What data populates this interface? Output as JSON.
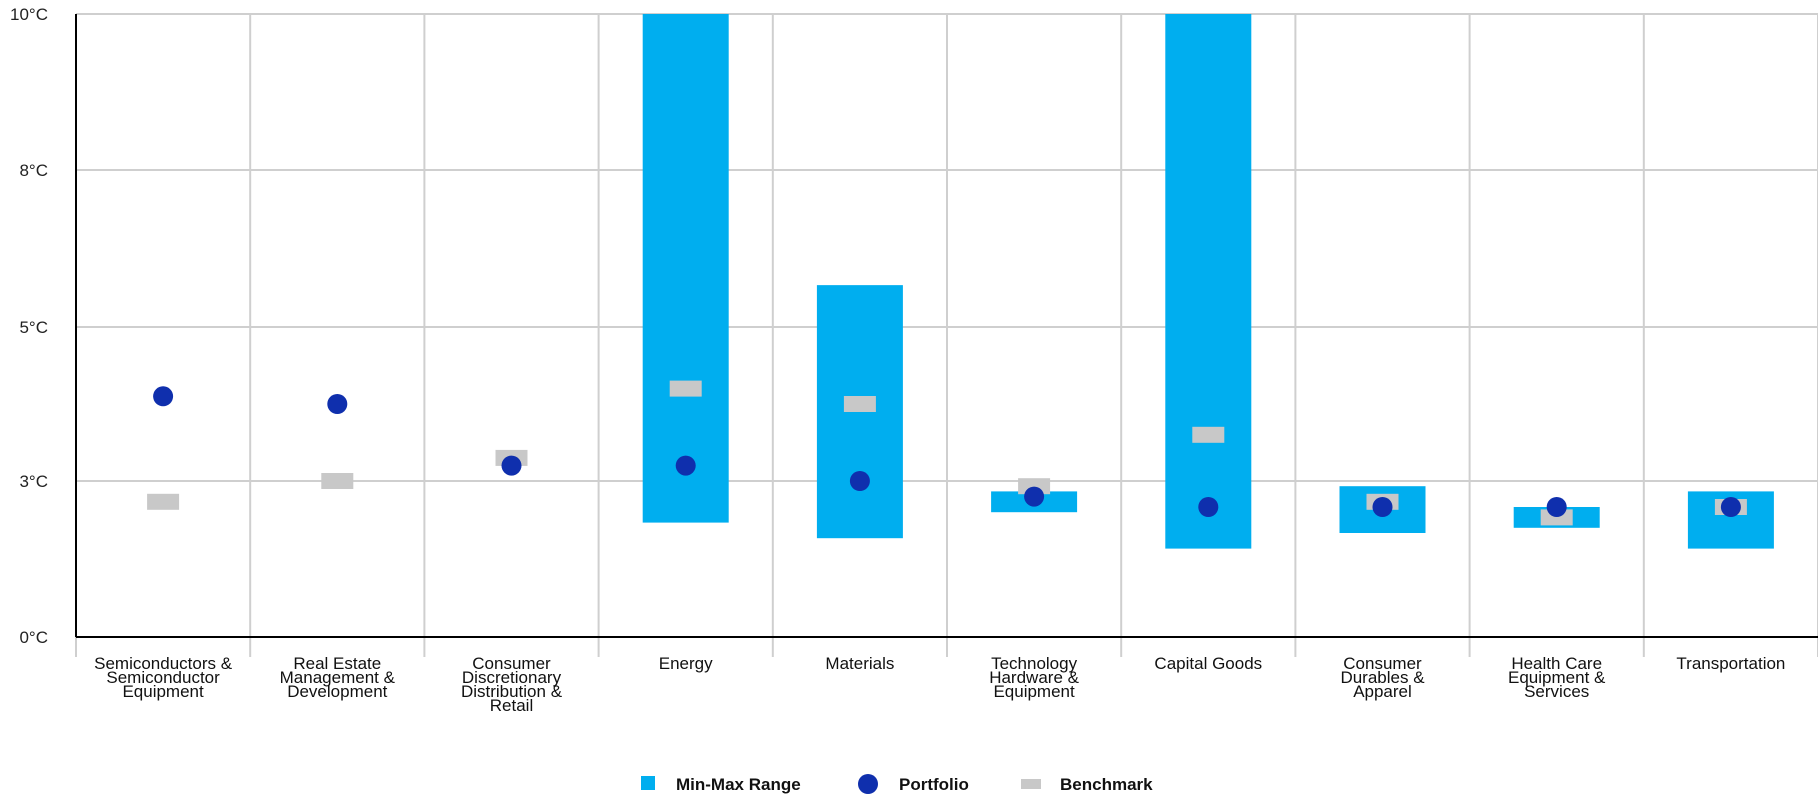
{
  "chart_data": {
    "type": "range-dot",
    "yaxis": {
      "ticks": [
        0,
        3,
        5,
        8,
        10
      ],
      "tick_labels": [
        "0°C",
        "3°C",
        "5°C",
        "8°C",
        "10°C"
      ],
      "ylim": [
        0,
        10
      ],
      "scale": "categorical-band"
    },
    "grid": true,
    "categories": [
      [
        "Semiconductors &",
        "Semiconductor",
        "Equipment"
      ],
      [
        "Real Estate",
        "Management &",
        "Development"
      ],
      [
        "Consumer",
        "Discretionary",
        "Distribution &",
        "Retail"
      ],
      [
        "Energy"
      ],
      [
        "Materials"
      ],
      [
        "Technology",
        "Hardware &",
        "Equipment"
      ],
      [
        "Capital Goods"
      ],
      [
        "Consumer",
        "Durables &",
        "Apparel"
      ],
      [
        "Health Care",
        "Equipment &",
        "Services"
      ],
      [
        "Transportation"
      ]
    ],
    "series": [
      {
        "name": "Min-Max Range",
        "color": "#00aeef",
        "ranges": [
          null,
          null,
          null,
          [
            2.2,
            10
          ],
          [
            1.9,
            5.8
          ],
          [
            2.4,
            2.8
          ],
          [
            1.7,
            10
          ],
          [
            2.0,
            2.9
          ],
          [
            2.1,
            2.5
          ],
          [
            1.7,
            2.8
          ]
        ]
      },
      {
        "name": "Portfolio",
        "color": "#0f2fad",
        "values": [
          4.1,
          4.0,
          3.2,
          3.2,
          3.0,
          2.7,
          2.5,
          2.5,
          2.5,
          2.5
        ]
      },
      {
        "name": "Benchmark",
        "color": "#c8c8c8",
        "values": [
          2.6,
          3.0,
          3.3,
          4.2,
          4.0,
          2.9,
          3.6,
          2.6,
          2.3,
          2.5
        ]
      }
    ],
    "legend": {
      "position": "bottom-center",
      "items": [
        {
          "label": "Min-Max Range",
          "marker": "square",
          "color": "#00aeef"
        },
        {
          "label": "Portfolio",
          "marker": "circle",
          "color": "#0f2fad"
        },
        {
          "label": "Benchmark",
          "marker": "bar",
          "color": "#c8c8c8"
        }
      ]
    }
  }
}
